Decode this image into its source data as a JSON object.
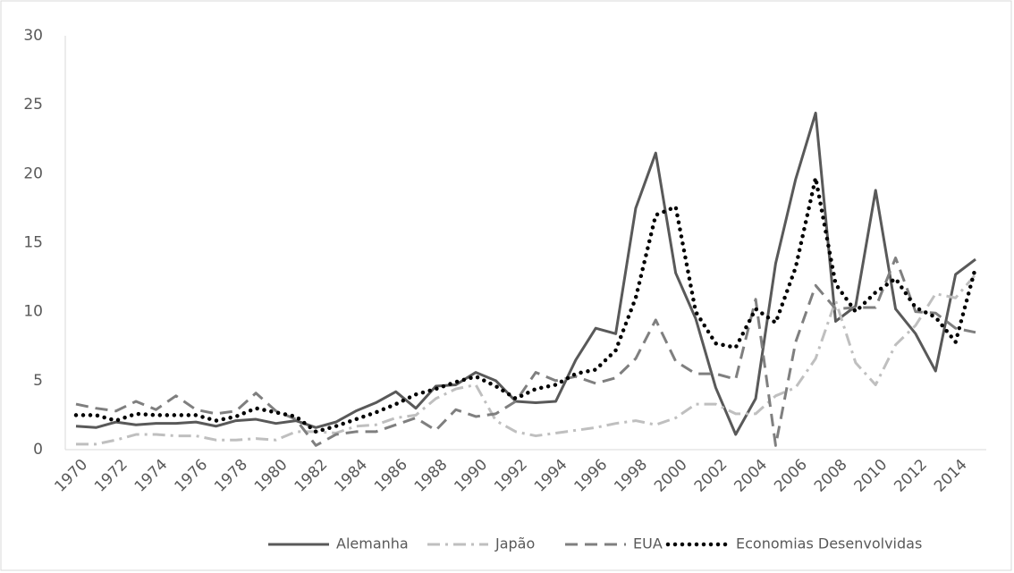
{
  "chart_data": {
    "type": "line",
    "categories": [
      "1970",
      null,
      "1972",
      null,
      "1974",
      null,
      "1976",
      null,
      "1978",
      null,
      "1980",
      null,
      "1982",
      null,
      "1984",
      null,
      "1986",
      null,
      "1988",
      null,
      "1990",
      null,
      "1992",
      null,
      "1994",
      null,
      "1996",
      null,
      "1998",
      null,
      "2000",
      null,
      "2002",
      null,
      "2004",
      null,
      "2006",
      null,
      "2008",
      null,
      "2010",
      null,
      "2012",
      null,
      "2014",
      null
    ],
    "series": [
      {
        "name": "Alemanha",
        "color": "#595959",
        "dash": "solid",
        "values": [
          1.7,
          1.6,
          2.0,
          1.8,
          1.9,
          1.9,
          2.0,
          1.7,
          2.1,
          2.2,
          1.9,
          2.1,
          1.6,
          2.0,
          2.8,
          3.4,
          4.2,
          3.0,
          4.6,
          4.7,
          5.6,
          5.0,
          3.5,
          3.4,
          3.5,
          6.5,
          8.8,
          8.4,
          17.5,
          21.5,
          12.8,
          9.5,
          4.5,
          1.1,
          3.7,
          13.5,
          19.6,
          24.4,
          9.3,
          10.4,
          18.8,
          10.2,
          8.4,
          5.7,
          12.7,
          13.8
        ]
      },
      {
        "name": "Japão",
        "color": "#bfbfbf",
        "dash": "dashdot",
        "values": [
          0.4,
          0.4,
          0.7,
          1.1,
          1.1,
          1.0,
          1.0,
          0.7,
          0.7,
          0.8,
          0.7,
          1.3,
          1.3,
          1.2,
          1.7,
          1.8,
          2.3,
          2.5,
          3.7,
          4.4,
          4.7,
          2.1,
          1.3,
          1.0,
          1.2,
          1.4,
          1.6,
          1.9,
          2.1,
          1.8,
          2.3,
          3.3,
          3.3,
          2.6,
          2.6,
          3.9,
          4.5,
          6.6,
          10.8,
          6.3,
          4.7,
          7.6,
          9.0,
          11.3,
          11.0,
          12.7
        ]
      },
      {
        "name": "EUA",
        "color": "#7f7f7f",
        "dash": "dash",
        "values": [
          3.3,
          3.0,
          2.8,
          3.5,
          2.9,
          3.9,
          2.9,
          2.6,
          2.8,
          4.1,
          2.8,
          2.2,
          0.3,
          1.1,
          1.3,
          1.3,
          1.8,
          2.3,
          1.4,
          2.9,
          2.4,
          2.6,
          3.5,
          5.6,
          5.0,
          5.3,
          4.8,
          5.2,
          6.6,
          9.4,
          6.4,
          5.5,
          5.5,
          5.1,
          10.9,
          0.3,
          7.8,
          11.9,
          10.2,
          10.3,
          10.3,
          13.9,
          10.0,
          9.9,
          8.8,
          8.5
        ]
      },
      {
        "name": "Economias Desenvolvidas",
        "color": "#000000",
        "dash": "dot",
        "values": [
          2.5,
          2.5,
          2.1,
          2.6,
          2.5,
          2.5,
          2.5,
          2.1,
          2.4,
          3.0,
          2.7,
          2.4,
          1.3,
          1.7,
          2.2,
          2.7,
          3.3,
          4.0,
          4.4,
          4.9,
          5.3,
          4.6,
          3.7,
          4.4,
          4.7,
          5.5,
          5.8,
          7.2,
          11.0,
          17.0,
          17.6,
          10.0,
          7.7,
          7.4,
          10.2,
          9.2,
          13.2,
          19.7,
          12.0,
          10.0,
          11.4,
          12.4,
          10.3,
          9.6,
          7.8,
          13.2
        ]
      }
    ],
    "ylim": [
      0,
      30
    ],
    "yticks": [
      0,
      5,
      10,
      15,
      20,
      25,
      30
    ],
    "grid": false,
    "legend": "bottom"
  }
}
